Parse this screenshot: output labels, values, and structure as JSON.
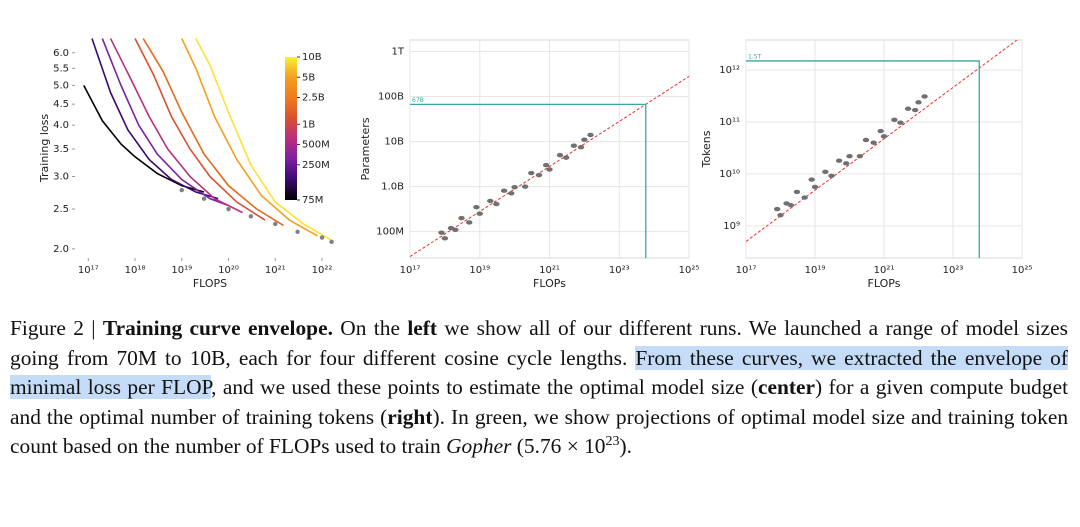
{
  "chart_data": [
    {
      "type": "line",
      "xlabel": "FLOPS",
      "ylabel": "Training loss",
      "xscale": "log",
      "yscale": "log",
      "xlim": [
        5.2e+16,
        3.1e+22
      ],
      "ylim": [
        1.9,
        6.52
      ],
      "xticks": [
        {
          "value": 1e+17,
          "label": "10¹⁷"
        },
        {
          "value": 1e+18,
          "label": "10¹⁸"
        },
        {
          "value": 1e+19,
          "label": "10¹⁹"
        },
        {
          "value": 1e+20,
          "label": "10²⁰"
        },
        {
          "value": 1e+21,
          "label": "10²¹"
        },
        {
          "value": 1e+22,
          "label": "10²²"
        }
      ],
      "yticks": [
        {
          "value": 2,
          "label": "2.0"
        },
        2.5,
        {
          "value": 3,
          "label": "3.0"
        },
        3.5,
        {
          "value": 4,
          "label": "4.0"
        },
        4.5,
        {
          "value": 5,
          "label": "5.0"
        },
        5.5,
        {
          "value": 6,
          "label": "6.0"
        }
      ],
      "series": [
        {
          "color": "#000000",
          "x": [
            8e+16,
            2e+17,
            5e+17,
            1e+18,
            3e+18,
            1e+19,
            3e+19
          ],
          "values": [
            5.0,
            4.1,
            3.6,
            3.35,
            3.05,
            2.85,
            2.75
          ]
        },
        {
          "color": "#3a0a6e",
          "x": [
            1.2e+17,
            3e+17,
            7e+17,
            2e+18,
            6e+18,
            2e+19,
            6e+19
          ],
          "values": [
            6.5,
            4.8,
            3.9,
            3.3,
            2.95,
            2.75,
            2.65
          ]
        },
        {
          "color": "#7a1fa2",
          "x": [
            2e+17,
            5e+17,
            1.2e+18,
            3e+18,
            1e+19,
            4e+19,
            1e+20
          ],
          "values": [
            6.5,
            5.0,
            4.0,
            3.4,
            2.95,
            2.65,
            2.55
          ]
        },
        {
          "color": "#b8307d",
          "x": [
            3e+17,
            8e+17,
            2e+18,
            5e+18,
            1.5e+19,
            5e+19,
            2e+20
          ],
          "values": [
            6.5,
            5.2,
            4.2,
            3.5,
            3.0,
            2.65,
            2.45
          ]
        },
        {
          "color": "#d9502f",
          "x": [
            1e+18,
            2.5e+18,
            6e+18,
            1.5e+19,
            4e+19,
            1.5e+20,
            6e+20
          ],
          "values": [
            6.5,
            5.3,
            4.2,
            3.5,
            3.0,
            2.6,
            2.35
          ]
        },
        {
          "color": "#e36a1e",
          "x": [
            1.5e+18,
            4e+18,
            1e+19,
            3e+19,
            1e+20,
            4e+20,
            1.5e+21
          ],
          "values": [
            6.5,
            5.4,
            4.3,
            3.4,
            2.85,
            2.5,
            2.28
          ]
        },
        {
          "color": "#f0a020",
          "x": [
            1e+19,
            2e+19,
            5e+19,
            1.5e+20,
            5e+20,
            2e+21,
            8e+21
          ],
          "values": [
            6.5,
            5.5,
            4.2,
            3.3,
            2.7,
            2.35,
            2.15
          ]
        },
        {
          "color": "#ffe033",
          "x": [
            2e+19,
            4e+19,
            1e+20,
            3e+20,
            1e+21,
            4e+21,
            1.6e+22
          ],
          "values": [
            6.5,
            5.6,
            4.3,
            3.2,
            2.6,
            2.3,
            2.1
          ]
        }
      ],
      "envelope": {
        "color": "#808080",
        "x": [
          1e+19,
          3e+19,
          1e+20,
          3e+20,
          1e+21,
          3e+21,
          1e+22,
          1.6e+22
        ],
        "values": [
          2.78,
          2.65,
          2.5,
          2.4,
          2.3,
          2.2,
          2.13,
          2.08
        ]
      },
      "colorbar": {
        "lim": [
          75000000.0,
          10000000000.0
        ],
        "colors": [
          "#000000",
          "#3a0a6e",
          "#7a1fa2",
          "#b8307d",
          "#d9502f",
          "#f07a1e",
          "#f0a020",
          "#ffee33"
        ],
        "ticks": [
          {
            "value": 75000000.0,
            "label": "75M"
          },
          {
            "value": 250000000.0,
            "label": "250M"
          },
          {
            "value": 500000000.0,
            "label": "500M"
          },
          {
            "value": 1000000000.0,
            "label": "1B"
          },
          {
            "value": 2500000000.0,
            "label": "2.5B"
          },
          {
            "value": 5000000000.0,
            "label": "5B"
          },
          {
            "value": 10000000000.0,
            "label": "10B"
          }
        ]
      }
    },
    {
      "type": "scatter",
      "xlabel": "FLOPs",
      "ylabel": "Parameters",
      "xscale": "log",
      "yscale": "log",
      "grid": true,
      "color": "#707070",
      "xlim": [
        1e+17,
        1e+25
      ],
      "ylim": [
        26000000.0,
        1800000000000.0
      ],
      "xticks": [
        {
          "value": 1e+17,
          "label": "10¹⁷"
        },
        {
          "value": 1e+19,
          "label": "10¹⁹"
        },
        {
          "value": 1e+21,
          "label": "10²¹"
        },
        {
          "value": 1e+23,
          "label": "10²³"
        },
        {
          "value": 1e+25,
          "label": "10²⁵"
        }
      ],
      "yticks": [
        {
          "value": 100000000.0,
          "label": "100M"
        },
        {
          "value": 1000000000.0,
          "label": "1.0B"
        },
        {
          "value": 10000000000.0,
          "label": "10B"
        },
        {
          "value": 100000000000.0,
          "label": "100B"
        },
        {
          "value": 1000000000000.0,
          "label": "1T"
        }
      ],
      "x": [
        8e+17,
        1e+18,
        1.5e+18,
        2e+18,
        3e+18,
        5e+18,
        8e+18,
        1e+19,
        2e+19,
        3e+19,
        5e+19,
        8e+19,
        1e+20,
        2e+20,
        3e+20,
        5e+20,
        8e+20,
        1e+21,
        2e+21,
        3e+21,
        5e+21,
        8e+21,
        1e+22,
        1.5e+22
      ],
      "y": [
        95000000.0,
        71000000.0,
        120000000.0,
        110000000.0,
        200000000.0,
        160000000.0,
        350000000.0,
        250000000.0,
        480000000.0,
        410000000.0,
        810000000.0,
        710000000.0,
        970000000.0,
        1000000000.0,
        2000000000.0,
        1800000000.0,
        3000000000.0,
        2400000000.0,
        5000000000.0,
        4400000000.0,
        8100000000.0,
        7500000000.0,
        11000000000.0,
        14000000000.0
      ],
      "fit": {
        "color": "#e8302a",
        "x": [
          1e+17,
          1e+25
        ],
        "y": [
          28000000.0,
          280000000000.0
        ]
      },
      "projection": {
        "color": "#3aa6a0",
        "x": 5.76e+23,
        "y": 67000000000.0,
        "label": "67B"
      }
    },
    {
      "type": "scatter",
      "xlabel": "FLOPs",
      "ylabel": "Tokens",
      "xscale": "log",
      "yscale": "log",
      "grid": true,
      "color": "#707070",
      "xlim": [
        1e+17,
        1e+25
      ],
      "ylim": [
        240000000.0,
        3800000000000.0
      ],
      "xticks": [
        {
          "value": 1e+17,
          "label": "10¹⁷"
        },
        {
          "value": 1e+19,
          "label": "10¹⁹"
        },
        {
          "value": 1e+21,
          "label": "10²¹"
        },
        {
          "value": 1e+23,
          "label": "10²³"
        },
        {
          "value": 1e+25,
          "label": "10²⁵"
        }
      ],
      "yticks": [
        {
          "value": 1000000000.0,
          "label": "10⁹"
        },
        {
          "value": 10000000000.0,
          "label": "10¹⁰"
        },
        {
          "value": 100000000000.0,
          "label": "10¹¹"
        },
        {
          "value": 1000000000000.0,
          "label": "10¹²"
        }
      ],
      "x": [
        8e+17,
        1e+18,
        1.5e+18,
        2e+18,
        3e+18,
        5e+18,
        8e+18,
        1e+19,
        2e+19,
        3e+19,
        5e+19,
        8e+19,
        1e+20,
        2e+20,
        3e+20,
        5e+20,
        8e+20,
        1e+21,
        2e+21,
        3e+21,
        5e+21,
        8e+21,
        1e+22,
        1.5e+22
      ],
      "y": [
        2100000000.0,
        1600000000.0,
        2700000000.0,
        2500000000.0,
        4500000000.0,
        3500000000.0,
        7800000000.0,
        5600000000.0,
        11000000000.0,
        9200000000.0,
        18000000000.0,
        16000000000.0,
        22000000000.0,
        22000000000.0,
        45000000000.0,
        40000000000.0,
        67000000000.0,
        53000000000.0,
        110000000000.0,
        97000000000.0,
        180000000000.0,
        170000000000.0,
        240000000000.0,
        310000000000.0
      ],
      "fit": {
        "color": "#e8302a",
        "x": [
          1e+17,
          1e+25
        ],
        "y": [
          500000000.0,
          4500000000000.0
        ]
      },
      "projection": {
        "color": "#3aa6a0",
        "x": 5.76e+23,
        "y": 1500000000000.0,
        "label": "1.5T"
      }
    }
  ],
  "caption": {
    "segments": [
      {
        "text": "Figure 2 | "
      },
      {
        "text": "Training curve envelope.",
        "bold": true
      },
      {
        "text": " On the "
      },
      {
        "text": "left",
        "bold": true
      },
      {
        "text": " we show all of our different runs. We launched a range of model sizes going from 70M to 10B, each for four different cosine cycle lengths. "
      },
      {
        "text": "From these curves, we extracted the envelope of minimal loss per FLOP",
        "highlight": true
      },
      {
        "text": ", and we used these points to estimate the optimal model size ("
      },
      {
        "text": "center",
        "bold": true
      },
      {
        "text": ") for a given compute budget and the optimal number of training tokens ("
      },
      {
        "text": "right",
        "bold": true
      },
      {
        "text": "). In green, we show projections of optimal model size and training token count based on the number of FLOPs used to train "
      },
      {
        "text": "Gopher",
        "italic": true
      },
      {
        "text": " (5.76 × 10"
      },
      {
        "text": "23",
        "sup": true
      },
      {
        "text": ")."
      }
    ]
  }
}
